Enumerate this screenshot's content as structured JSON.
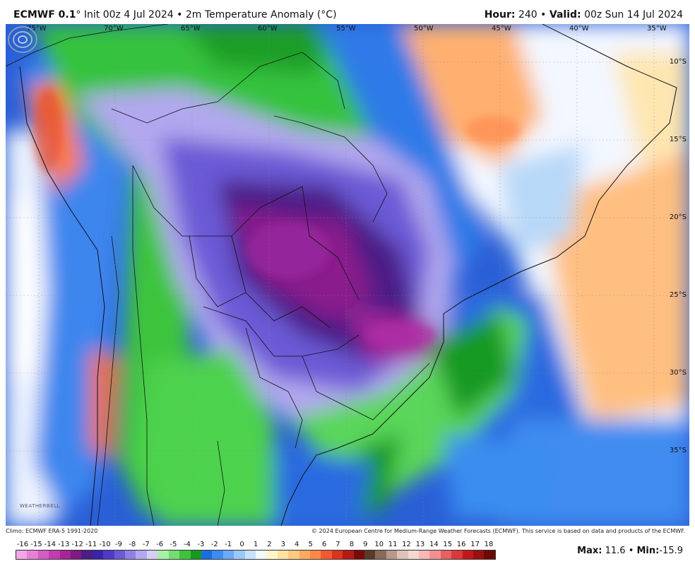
{
  "header": {
    "model": "ECMWF 0.1",
    "degree": "°",
    "init": "Init 00z 4 Jul 2024",
    "sep": "•",
    "field": "2m Temperature Anomaly (°C)",
    "hour_label": "Hour:",
    "hour": "240",
    "valid_label": "Valid:",
    "valid": "00z Sun 14 Jul 2024"
  },
  "map": {
    "lon_labels": [
      "75°W",
      "70°W",
      "65°W",
      "60°W",
      "55°W",
      "50°W",
      "45°W",
      "40°W",
      "35°W"
    ],
    "lat_labels": [
      "10°S",
      "15°S",
      "20°S",
      "25°S",
      "30°S",
      "35°S"
    ],
    "logo_text": "WEATHERBELL"
  },
  "footer": {
    "climo": "Climo: ECMWF ERA-5 1991-2020",
    "copyright": "© 2024 European Centre for Medium-Range Weather Forecasts (ECMWF). This service is based on data and products of the ECMWF."
  },
  "colorbar": {
    "ticks": [
      "-16",
      "-15",
      "-14",
      "-13",
      "-12",
      "-11",
      "-10",
      "-9",
      "-8",
      "-7",
      "-6",
      "-5",
      "-4",
      "-3",
      "-2",
      "-1",
      "0",
      "1",
      "2",
      "3",
      "4",
      "5",
      "6",
      "7",
      "8",
      "9",
      "10",
      "11",
      "12",
      "13",
      "14",
      "15",
      "16",
      "17",
      "18"
    ],
    "colors": [
      "#f4a6e8",
      "#e67fd6",
      "#d55bc4",
      "#c23bb2",
      "#a3259a",
      "#7e1a80",
      "#4b1d86",
      "#3a23a8",
      "#4d3bc6",
      "#6a5ad6",
      "#8f80e3",
      "#b2a8ee",
      "#d5cff6",
      "#a6f0a6",
      "#72dd72",
      "#3cc43c",
      "#169a20",
      "#1a6fe0",
      "#3f8cf0",
      "#6aaaf6",
      "#99c8fa",
      "#c8e2fc",
      "#f2f8ff",
      "#fff6c8",
      "#ffe3a0",
      "#ffc880",
      "#ffa860",
      "#ff8848",
      "#f05a32",
      "#d8341e",
      "#b41a14",
      "#7a0a0a",
      "#5a3a2c",
      "#8a6a58",
      "#b89888",
      "#dcc2b8",
      "#f4d8d0",
      "#f8b8b8",
      "#f29090",
      "#e86060",
      "#d83a3a",
      "#c01818",
      "#981010",
      "#700808"
    ]
  },
  "stats": {
    "max_label": "Max:",
    "max": "11.6",
    "sep": "•",
    "min_label": "Min:",
    "min": "-15.9"
  }
}
